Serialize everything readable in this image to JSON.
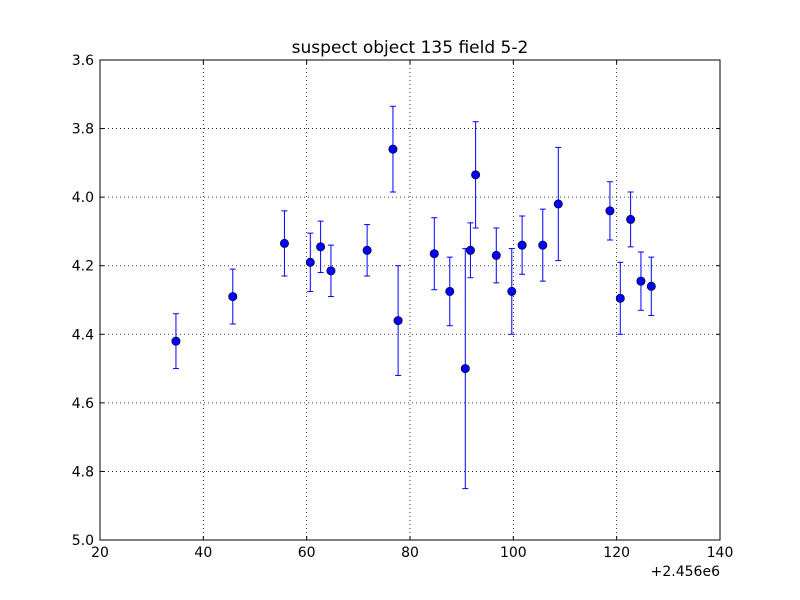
{
  "chart_data": {
    "type": "scatter",
    "title": "suspect object 135 field 5-2",
    "xlabel": "",
    "ylabel": "",
    "xlim": [
      20,
      140
    ],
    "ylim": [
      3.6,
      5.0
    ],
    "y_inverted": true,
    "x_offset_label": "+2.456e6",
    "grid": true,
    "x_ticks": [
      "20",
      "40",
      "60",
      "80",
      "100",
      "120",
      "140"
    ],
    "y_ticks": [
      "3.6",
      "3.8",
      "4.0",
      "4.2",
      "4.4",
      "4.6",
      "4.8",
      "5.0"
    ],
    "series_color": "#0000ff",
    "points": [
      {
        "x": 34.7,
        "y": 4.42,
        "err": 0.08
      },
      {
        "x": 45.7,
        "y": 4.29,
        "err": 0.08
      },
      {
        "x": 55.7,
        "y": 4.135,
        "err": 0.095
      },
      {
        "x": 60.7,
        "y": 4.19,
        "err": 0.085
      },
      {
        "x": 62.7,
        "y": 4.145,
        "err": 0.075
      },
      {
        "x": 64.7,
        "y": 4.215,
        "err": 0.075
      },
      {
        "x": 71.7,
        "y": 4.155,
        "err": 0.075
      },
      {
        "x": 76.7,
        "y": 3.86,
        "err": 0.125
      },
      {
        "x": 77.7,
        "y": 4.36,
        "err": 0.16
      },
      {
        "x": 84.7,
        "y": 4.165,
        "err": 0.105
      },
      {
        "x": 87.7,
        "y": 4.275,
        "err": 0.1
      },
      {
        "x": 90.7,
        "y": 4.5,
        "err": 0.35
      },
      {
        "x": 91.7,
        "y": 4.155,
        "err": 0.08
      },
      {
        "x": 92.7,
        "y": 3.935,
        "err": 0.155
      },
      {
        "x": 96.7,
        "y": 4.17,
        "err": 0.08
      },
      {
        "x": 99.7,
        "y": 4.275,
        "err": 0.125
      },
      {
        "x": 101.7,
        "y": 4.14,
        "err": 0.085
      },
      {
        "x": 105.7,
        "y": 4.14,
        "err": 0.105
      },
      {
        "x": 108.7,
        "y": 4.02,
        "err": 0.165
      },
      {
        "x": 118.7,
        "y": 4.04,
        "err": 0.085
      },
      {
        "x": 120.7,
        "y": 4.295,
        "err": 0.105
      },
      {
        "x": 122.7,
        "y": 4.065,
        "err": 0.08
      },
      {
        "x": 124.7,
        "y": 4.245,
        "err": 0.085
      },
      {
        "x": 126.7,
        "y": 4.26,
        "err": 0.085
      }
    ]
  }
}
